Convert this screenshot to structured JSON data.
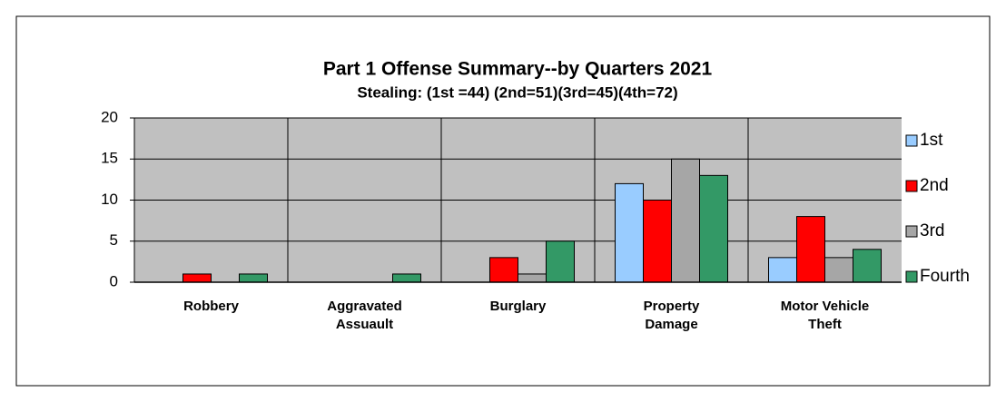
{
  "chart_data": {
    "type": "bar",
    "title": "Part 1 Offense Summary--by Quarters 2021",
    "subtitle": "Stealing: (1st =44) (2nd=51)(3rd=45)(4th=72)",
    "categories": [
      "Robbery",
      "Aggravated Assuault",
      "Burglary",
      "Property Damage",
      "Motor Vehicle Theft"
    ],
    "series": [
      {
        "name": "1st",
        "color": "#99ccff",
        "values": [
          0,
          0,
          0,
          12,
          3
        ]
      },
      {
        "name": "2nd",
        "color": "#ff0000",
        "values": [
          1,
          0,
          3,
          10,
          8
        ]
      },
      {
        "name": "3rd",
        "color": "#a6a6a6",
        "values": [
          0,
          0,
          1,
          15,
          3
        ]
      },
      {
        "name": "Fourth",
        "color": "#339966",
        "values": [
          1,
          1,
          5,
          13,
          4
        ]
      }
    ],
    "ylim": [
      0,
      20
    ],
    "yticks": [
      0,
      5,
      10,
      15,
      20
    ],
    "grid": true,
    "legend": "right"
  }
}
